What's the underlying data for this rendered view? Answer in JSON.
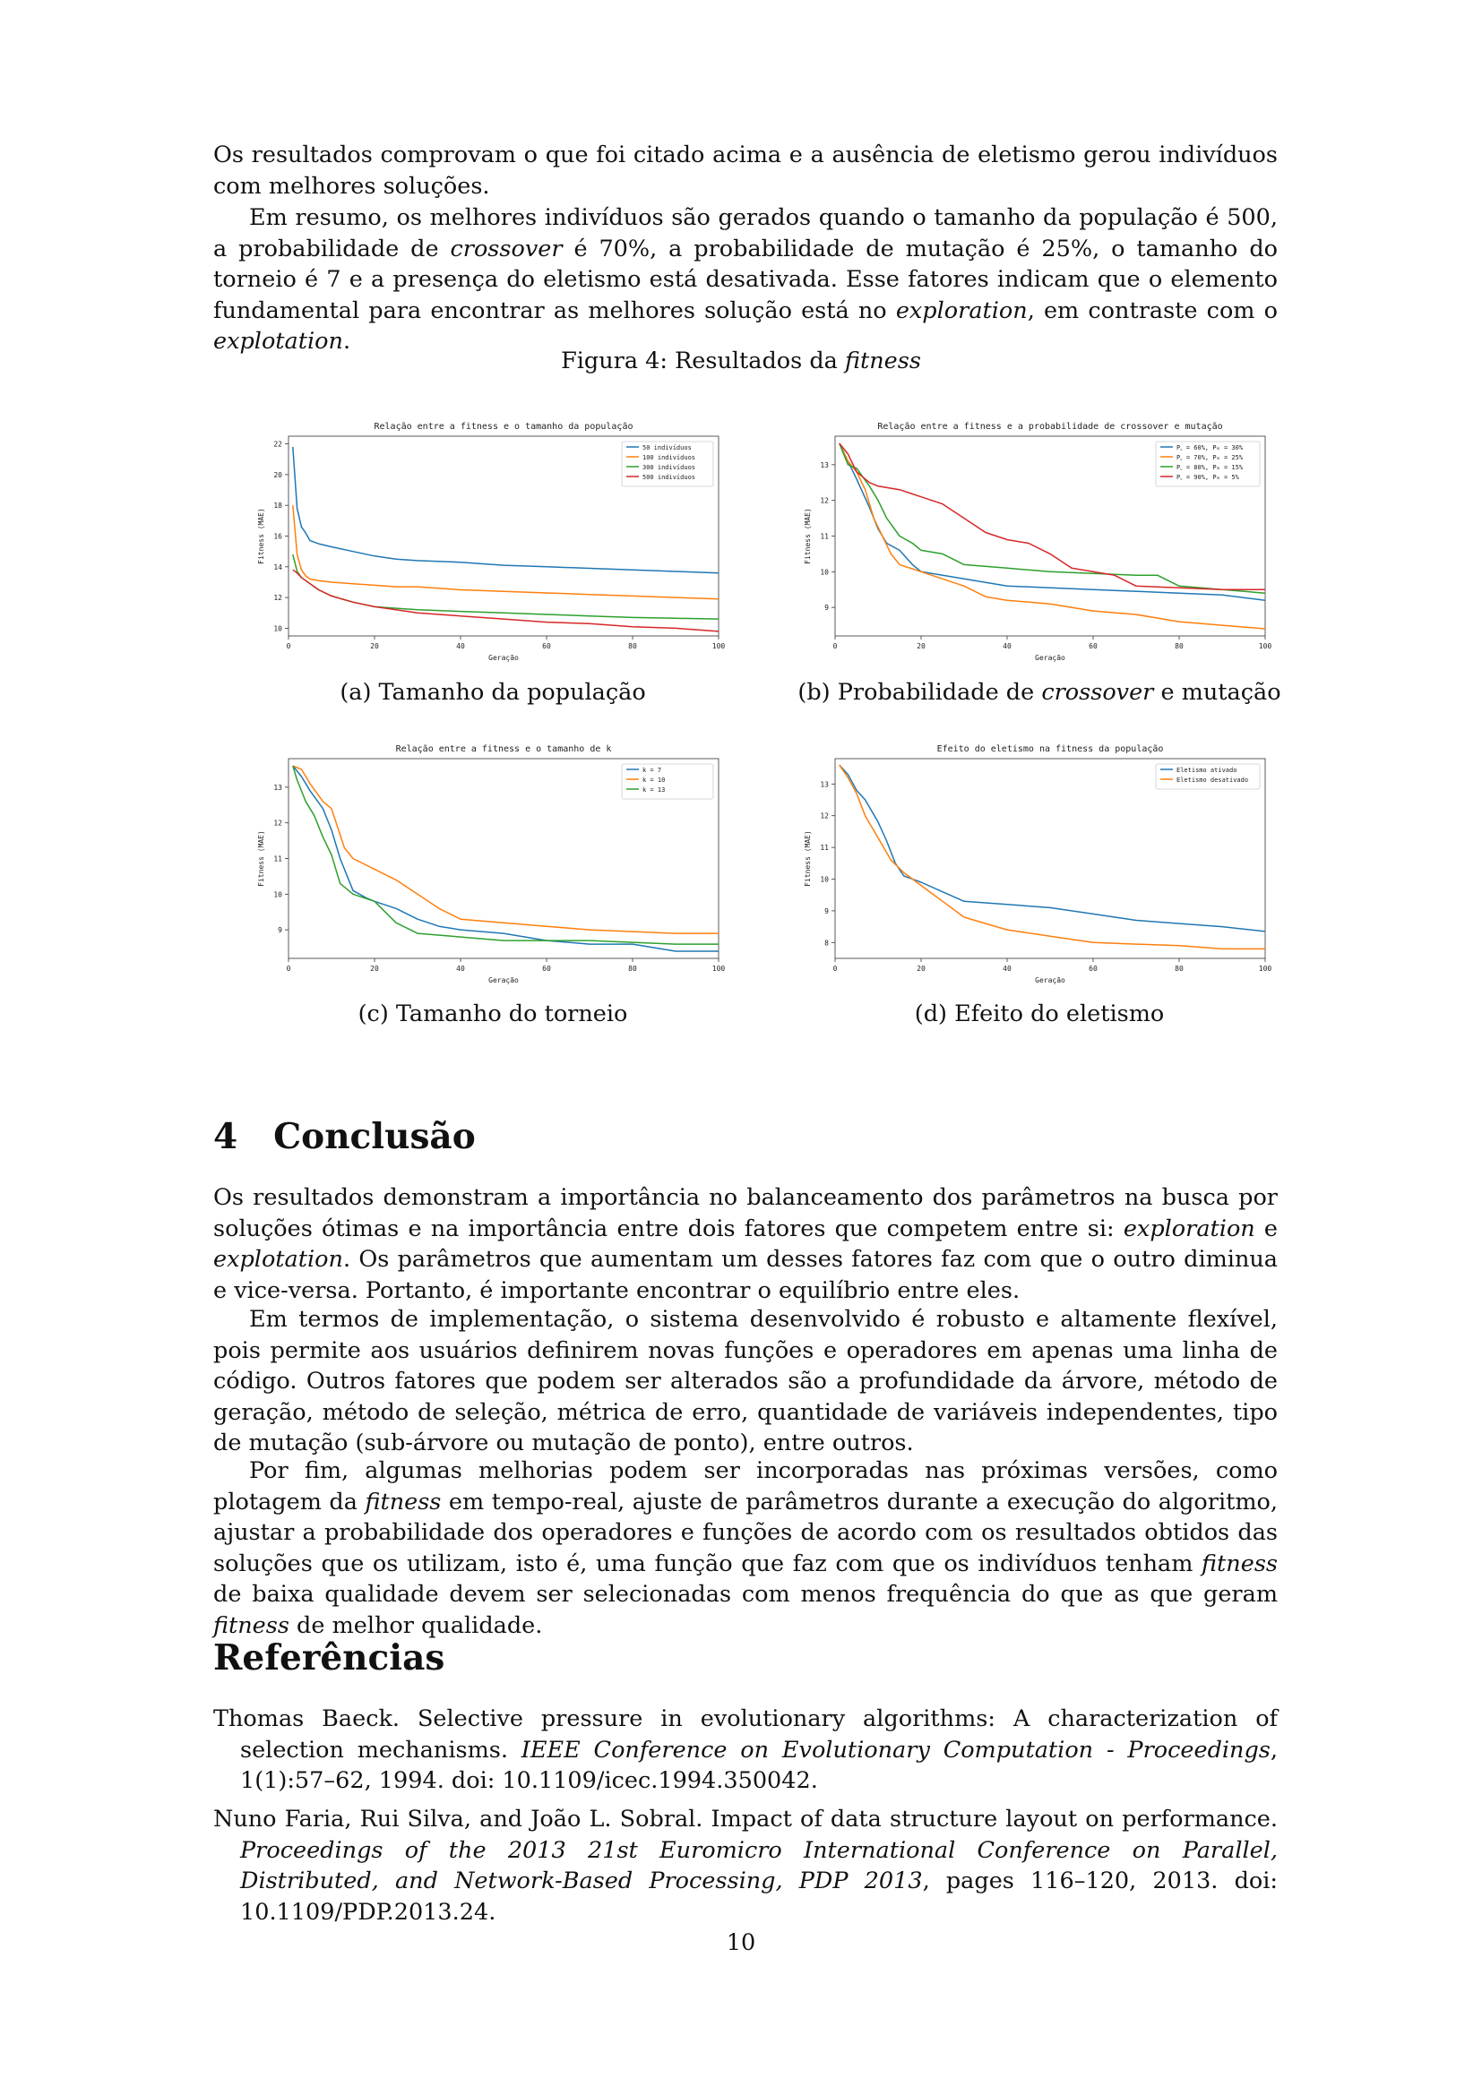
{
  "intro": {
    "p1": "Os resultados comprovam o que foi citado acima e a ausência de eletismo gerou indivíduos com melhores soluções.",
    "p2_a": "Em resumo, os melhores indivíduos são gerados quando o tamanho da população é 500, a probabilidade de ",
    "p2_b": "crossover",
    "p2_c": " é 70%, a probabilidade de mutação é 25%, o tamanho do torneio é 7 e a presença do eletismo está desativada. Esse fatores indicam que o elemento fundamental para encontrar as melhores solução está no ",
    "p2_d": "exploration",
    "p2_e": ", em contraste com o ",
    "p2_f": "explotation",
    "p2_g": "."
  },
  "figure": {
    "caption_a": "Figura 4: Resultados da ",
    "caption_b": "fitness",
    "sub_a": "(a) Tamanho da população",
    "sub_b_1": "(b) Probabilidade de ",
    "sub_b_2": "crossover",
    "sub_b_3": " e mutação",
    "sub_c": "(c) Tamanho do torneio",
    "sub_d": "(d) Efeito do eletismo"
  },
  "colors": {
    "blue": "#1f77b4",
    "orange": "#ff7f0e",
    "green": "#2ca02c",
    "red": "#d62728"
  },
  "chart_data": [
    {
      "type": "line",
      "title": "Relação entre a fitness e o tamanho da população",
      "xlabel": "Geração",
      "ylabel": "Fitness (MAE)",
      "xlim": [
        0,
        100
      ],
      "ylim": [
        9.5,
        22.5
      ],
      "xticks": [
        "0",
        "20",
        "40",
        "60",
        "80",
        "100"
      ],
      "yticks": [
        "10",
        "12",
        "14",
        "16",
        "18",
        "20",
        "22"
      ],
      "legend_position": "top-right",
      "series": [
        {
          "name": "50 indivíduos",
          "color": "#1f77b4",
          "x": [
            1,
            2,
            3,
            4,
            5,
            7,
            10,
            15,
            20,
            25,
            30,
            40,
            50,
            60,
            70,
            80,
            90,
            100
          ],
          "y": [
            21.8,
            17.8,
            16.6,
            16.2,
            15.7,
            15.5,
            15.3,
            15.0,
            14.7,
            14.5,
            14.4,
            14.3,
            14.1,
            14.0,
            13.9,
            13.8,
            13.7,
            13.6
          ]
        },
        {
          "name": "100 indivíduos",
          "color": "#ff7f0e",
          "x": [
            1,
            2,
            3,
            4,
            5,
            7,
            10,
            15,
            20,
            25,
            30,
            40,
            50,
            60,
            70,
            80,
            90,
            100
          ],
          "y": [
            18.0,
            14.8,
            13.8,
            13.4,
            13.2,
            13.1,
            13.0,
            12.9,
            12.8,
            12.7,
            12.7,
            12.5,
            12.4,
            12.3,
            12.2,
            12.1,
            12.0,
            11.9
          ]
        },
        {
          "name": "300 indivíduos",
          "color": "#2ca02c",
          "x": [
            1,
            2,
            3,
            5,
            7,
            10,
            15,
            20,
            25,
            30,
            40,
            50,
            60,
            70,
            80,
            90,
            100
          ],
          "y": [
            14.8,
            13.7,
            13.3,
            12.9,
            12.5,
            12.1,
            11.7,
            11.4,
            11.3,
            11.2,
            11.1,
            11.0,
            10.9,
            10.8,
            10.7,
            10.65,
            10.6
          ]
        },
        {
          "name": "500 indivíduos",
          "color": "#d62728",
          "x": [
            1,
            2,
            3,
            5,
            7,
            10,
            15,
            20,
            25,
            30,
            40,
            50,
            60,
            70,
            80,
            90,
            100
          ],
          "y": [
            13.8,
            13.6,
            13.3,
            12.9,
            12.5,
            12.1,
            11.7,
            11.4,
            11.2,
            11.0,
            10.8,
            10.6,
            10.4,
            10.3,
            10.1,
            10.0,
            9.8
          ]
        }
      ]
    },
    {
      "type": "line",
      "title": "Relação entre a fitness e a probabilidade de crossover e mutação",
      "xlabel": "Geração",
      "ylabel": "Fitness (MAE)",
      "xlim": [
        0,
        100
      ],
      "ylim": [
        8.2,
        13.8
      ],
      "xticks": [
        "0",
        "20",
        "40",
        "60",
        "80",
        "100"
      ],
      "yticks": [
        "9",
        "10",
        "11",
        "12",
        "13"
      ],
      "legend_position": "top-right",
      "series": [
        {
          "name": "P_c = 60%, P_m = 30%",
          "color": "#1f77b4",
          "x": [
            1,
            3,
            5,
            8,
            10,
            12,
            15,
            18,
            20,
            25,
            30,
            35,
            40,
            50,
            60,
            70,
            80,
            90,
            100
          ],
          "y": [
            13.6,
            13.1,
            12.6,
            11.8,
            11.2,
            10.8,
            10.6,
            10.2,
            10.0,
            9.9,
            9.8,
            9.7,
            9.6,
            9.55,
            9.5,
            9.45,
            9.4,
            9.35,
            9.2
          ]
        },
        {
          "name": "P_c = 70%, P_m = 25%",
          "color": "#ff7f0e",
          "x": [
            1,
            3,
            5,
            7,
            9,
            11,
            13,
            15,
            20,
            25,
            30,
            35,
            40,
            50,
            60,
            70,
            80,
            90,
            100
          ],
          "y": [
            13.6,
            13.1,
            12.8,
            12.3,
            11.5,
            11.0,
            10.5,
            10.2,
            10.0,
            9.8,
            9.6,
            9.3,
            9.2,
            9.1,
            8.9,
            8.8,
            8.6,
            8.5,
            8.4
          ]
        },
        {
          "name": "P_c = 80%, P_m = 15%",
          "color": "#2ca02c",
          "x": [
            1,
            3,
            5,
            8,
            10,
            12,
            15,
            18,
            20,
            25,
            30,
            40,
            50,
            60,
            70,
            75,
            80,
            90,
            100
          ],
          "y": [
            13.6,
            13.0,
            12.9,
            12.4,
            12.0,
            11.5,
            11.0,
            10.8,
            10.6,
            10.5,
            10.2,
            10.1,
            10.0,
            9.95,
            9.9,
            9.9,
            9.6,
            9.5,
            9.4
          ]
        },
        {
          "name": "P_c = 90%, P_m = 5%",
          "color": "#d62728",
          "x": [
            1,
            3,
            5,
            8,
            10,
            15,
            20,
            25,
            30,
            35,
            40,
            45,
            50,
            55,
            60,
            65,
            70,
            80,
            90,
            100
          ],
          "y": [
            13.6,
            13.3,
            12.8,
            12.5,
            12.4,
            12.3,
            12.1,
            11.9,
            11.5,
            11.1,
            10.9,
            10.8,
            10.5,
            10.1,
            10.0,
            9.9,
            9.6,
            9.55,
            9.5,
            9.5
          ]
        }
      ]
    },
    {
      "type": "line",
      "title": "Relação entre a fitness e o tamanho de k",
      "xlabel": "Geração",
      "ylabel": "Fitness (MAE)",
      "xlim": [
        0,
        100
      ],
      "ylim": [
        8.2,
        13.8
      ],
      "xticks": [
        "0",
        "20",
        "40",
        "60",
        "80",
        "100"
      ],
      "yticks": [
        "9",
        "10",
        "11",
        "12",
        "13"
      ],
      "legend_position": "top-right",
      "series": [
        {
          "name": "k = 7",
          "color": "#1f77b4",
          "x": [
            1,
            3,
            5,
            8,
            10,
            12,
            15,
            18,
            20,
            25,
            30,
            35,
            40,
            50,
            60,
            70,
            80,
            90,
            100
          ],
          "y": [
            13.6,
            13.3,
            12.9,
            12.4,
            11.8,
            11.0,
            10.1,
            9.9,
            9.8,
            9.6,
            9.3,
            9.1,
            9.0,
            8.9,
            8.7,
            8.6,
            8.6,
            8.4,
            8.4
          ]
        },
        {
          "name": "k = 10",
          "color": "#ff7f0e",
          "x": [
            1,
            3,
            5,
            8,
            10,
            13,
            15,
            20,
            25,
            30,
            35,
            40,
            50,
            60,
            70,
            80,
            90,
            100
          ],
          "y": [
            13.6,
            13.5,
            13.1,
            12.6,
            12.4,
            11.3,
            11.0,
            10.7,
            10.4,
            10.0,
            9.6,
            9.3,
            9.2,
            9.1,
            9.0,
            8.95,
            8.9,
            8.9
          ]
        },
        {
          "name": "k = 13",
          "color": "#2ca02c",
          "x": [
            1,
            2,
            4,
            6,
            8,
            10,
            12,
            15,
            20,
            25,
            30,
            40,
            50,
            60,
            70,
            80,
            90,
            100
          ],
          "y": [
            13.6,
            13.2,
            12.6,
            12.2,
            11.6,
            11.1,
            10.3,
            10.0,
            9.8,
            9.2,
            8.9,
            8.8,
            8.7,
            8.7,
            8.7,
            8.65,
            8.6,
            8.6
          ]
        }
      ]
    },
    {
      "type": "line",
      "title": "Efeito do eletismo na fitness da população",
      "xlabel": "Geração",
      "ylabel": "Fitness (MAE)",
      "xlim": [
        0,
        100
      ],
      "ylim": [
        7.5,
        13.8
      ],
      "xticks": [
        "0",
        "20",
        "40",
        "60",
        "80",
        "100"
      ],
      "yticks": [
        "8",
        "9",
        "10",
        "11",
        "12",
        "13"
      ],
      "legend_position": "top-right",
      "series": [
        {
          "name": "Eletismo ativado",
          "color": "#1f77b4",
          "x": [
            1,
            3,
            5,
            7,
            10,
            12,
            14,
            16,
            20,
            25,
            30,
            40,
            50,
            60,
            70,
            80,
            90,
            100
          ],
          "y": [
            13.6,
            13.3,
            12.8,
            12.5,
            11.8,
            11.2,
            10.5,
            10.1,
            9.9,
            9.6,
            9.3,
            9.2,
            9.1,
            8.9,
            8.7,
            8.6,
            8.5,
            8.35
          ]
        },
        {
          "name": "Eletismo desativado",
          "color": "#ff7f0e",
          "x": [
            1,
            3,
            5,
            7,
            10,
            13,
            16,
            20,
            25,
            30,
            35,
            40,
            50,
            60,
            70,
            80,
            90,
            100
          ],
          "y": [
            13.6,
            13.2,
            12.7,
            12.0,
            11.3,
            10.6,
            10.2,
            9.8,
            9.3,
            8.8,
            8.6,
            8.4,
            8.2,
            8.0,
            7.95,
            7.9,
            7.8,
            7.8
          ]
        }
      ]
    }
  ],
  "conclusion": {
    "number": "4",
    "title": "Conclusão",
    "p1_a": "Os resultados demonstram a importância no balanceamento dos parâmetros na busca por soluções ótimas e na importância entre dois fatores que competem entre si: ",
    "p1_b": "exploration",
    "p1_c": " e ",
    "p1_d": "explotation",
    "p1_e": ". Os parâmetros que aumentam um desses fatores faz com que o outro diminua e vice-versa. Portanto, é importante encontrar o equilíbrio entre eles.",
    "p2": "Em termos de implementação, o sistema desenvolvido é robusto e altamente flexível, pois permite aos usuários definirem novas funções e operadores em apenas uma linha de código. Outros fatores que podem ser alterados são a profundidade da árvore, método de geração, método de seleção, métrica de erro, quantidade de variáveis independentes, tipo de mutação (sub-árvore ou mutação de ponto), entre outros.",
    "p3_a": "Por fim, algumas melhorias podem ser incorporadas nas próximas versões, como plotagem da ",
    "p3_b": "fitness",
    "p3_c": " em tempo-real, ajuste de parâmetros durante a execução do algoritmo, ajustar a probabilidade dos operadores e funções de acordo com os resultados obtidos das soluções que os utilizam, isto é, uma função que faz com que os indivíduos tenham ",
    "p3_d": "fitness",
    "p3_e": " de baixa qualidade devem ser selecionadas com menos frequência do que as que geram ",
    "p3_f": "fitness",
    "p3_g": " de melhor qualidade."
  },
  "references": {
    "title": "Referências",
    "r1_a": "Thomas Baeck. Selective pressure in evolutionary algorithms: A characterization of selection mechanisms. ",
    "r1_b": "IEEE Conference on Evolutionary Computation - Proceedings",
    "r1_c": ", 1(1):57–62, 1994. doi: 10.1109/icec.1994.350042.",
    "r2_a": "Nuno Faria, Rui Silva, and João L. Sobral. Impact of data structure layout on performance. ",
    "r2_b": "Proceedings of the 2013 21st Euromicro International Conference on Parallel, Distributed, and Network-Based Processing, PDP 2013",
    "r2_c": ", pages 116–120, 2013. doi: 10.1109/PDP.2013.24."
  },
  "page_number": "10"
}
